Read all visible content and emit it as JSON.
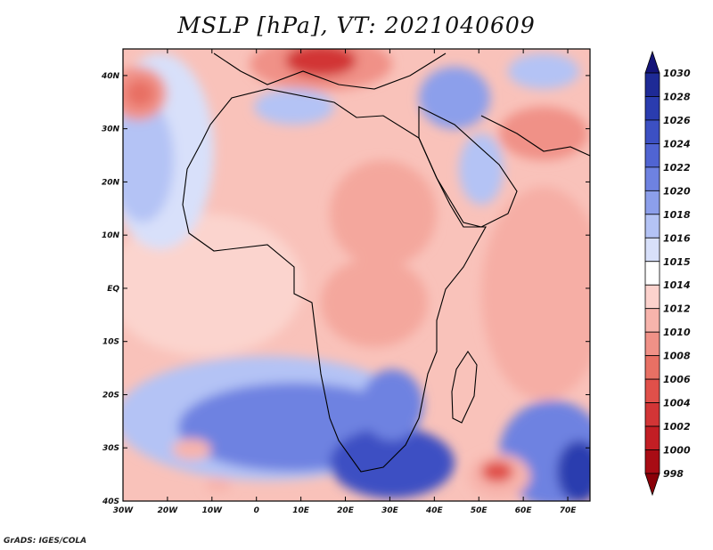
{
  "title": "MSLP [hPa], VT: 2021040609",
  "credit": "GrADS: IGES/COLA",
  "map": {
    "lat_labels": [
      "40N",
      "30N",
      "20N",
      "10N",
      "EQ",
      "10S",
      "20S",
      "30S",
      "40S"
    ],
    "lon_labels": [
      "30W",
      "20W",
      "10W",
      "0",
      "10E",
      "20E",
      "30E",
      "40E",
      "50E",
      "60E",
      "70E"
    ],
    "lon_range": [
      -30,
      75
    ],
    "lat_range": [
      -40,
      45
    ]
  },
  "colorbar": {
    "levels": [
      "1030",
      "1028",
      "1026",
      "1024",
      "1022",
      "1020",
      "1018",
      "1016",
      "1015",
      "1014",
      "1012",
      "1010",
      "1008",
      "1006",
      "1004",
      "1002",
      "1000",
      "998"
    ],
    "colors": [
      "#141478",
      "#1e2a96",
      "#2a3caf",
      "#3c50c3",
      "#5064d2",
      "#6e82e1",
      "#8c9feb",
      "#b4c3f5",
      "#d8e0fa",
      "#ffffff",
      "#fcd2cd",
      "#f7b4ac",
      "#f09187",
      "#e87064",
      "#e0504a",
      "#d23536",
      "#c21e24",
      "#a80c14",
      "#8a0008"
    ]
  },
  "colors": {
    "background": "#ffffff",
    "land_outline": "#000000"
  }
}
